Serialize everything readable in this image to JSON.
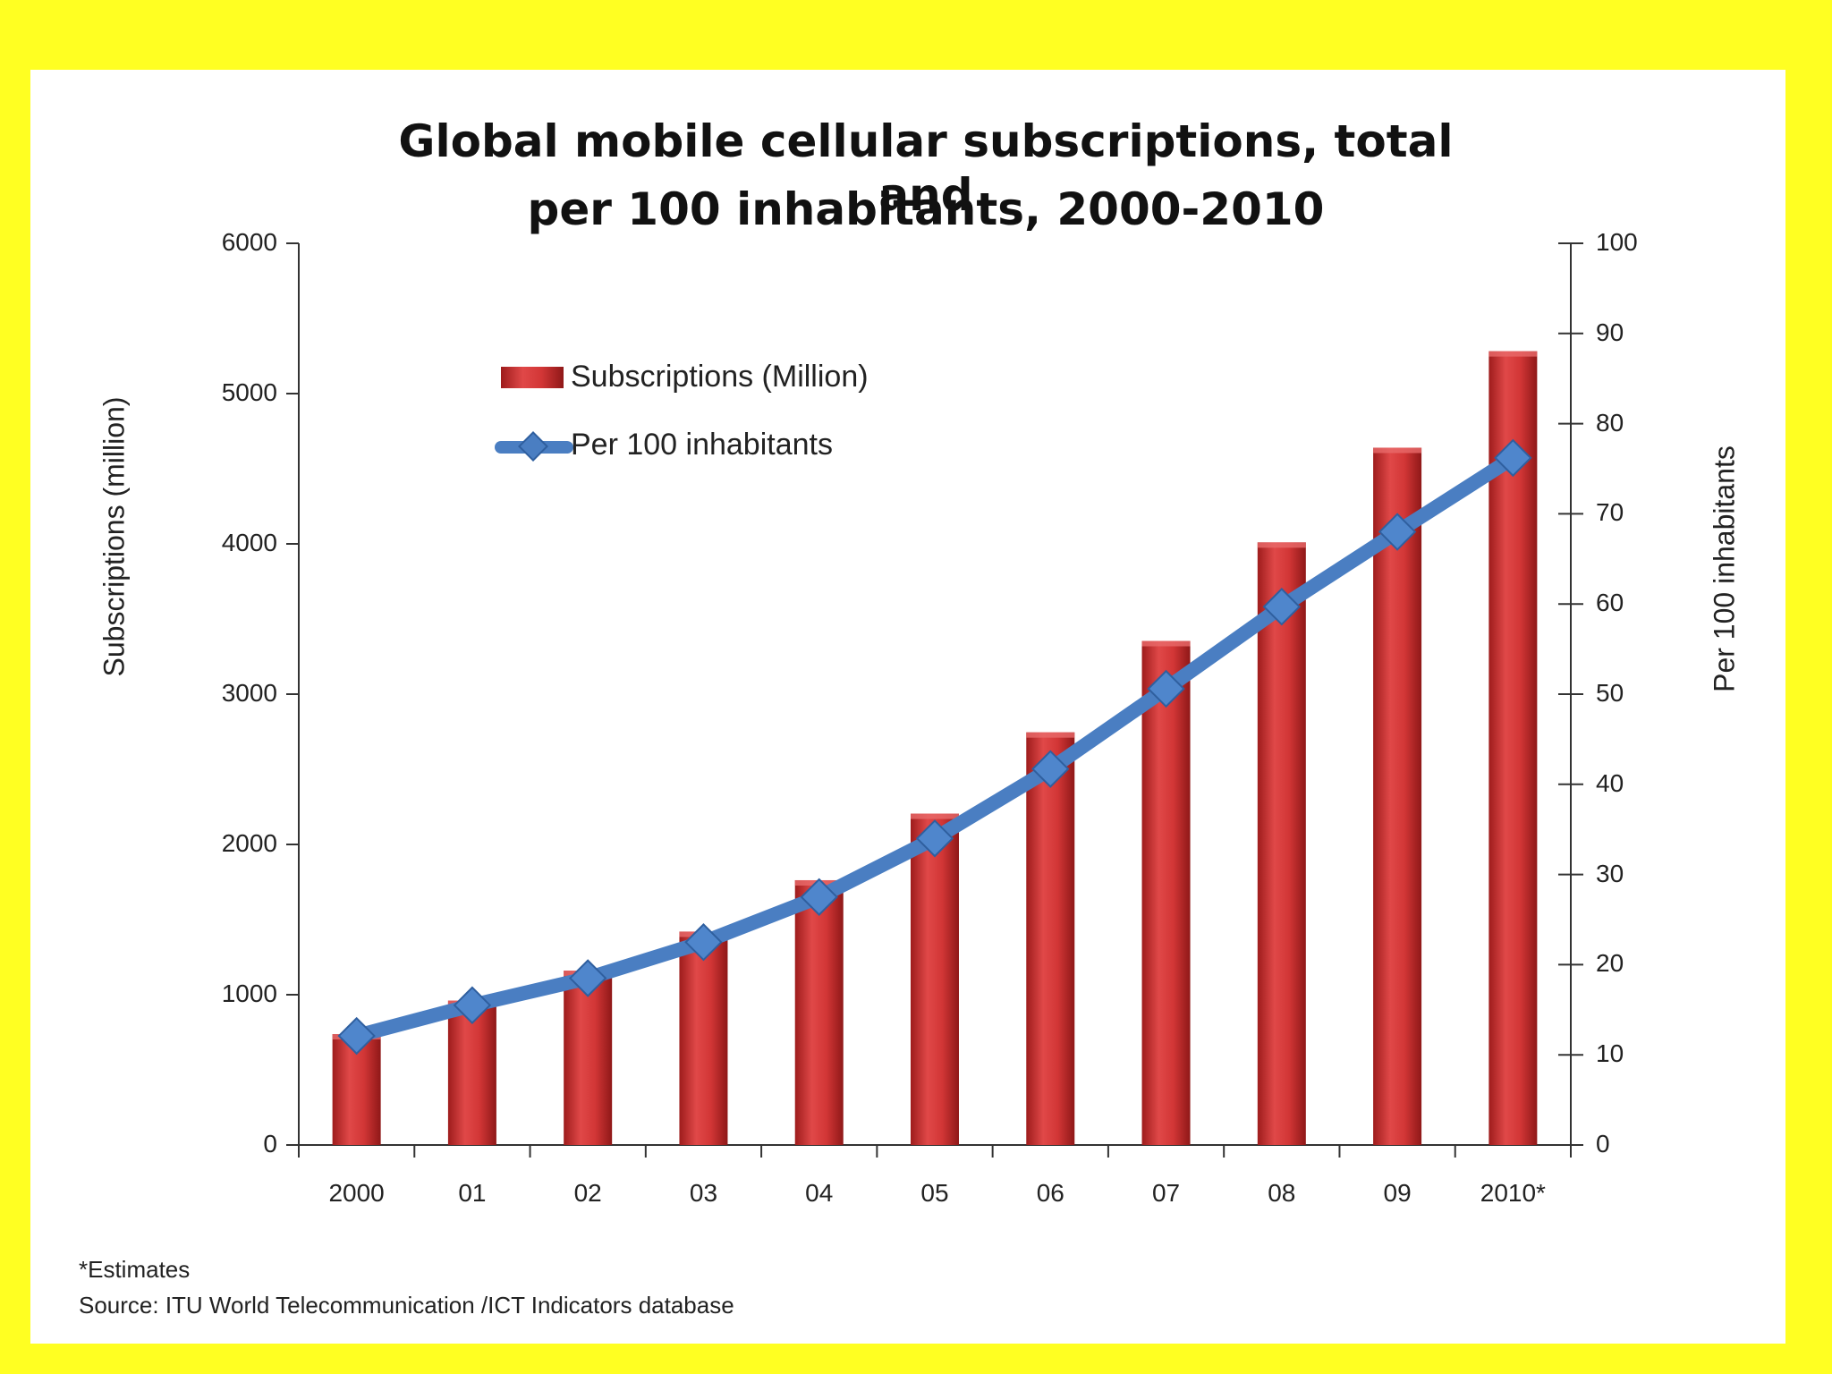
{
  "chart_data": {
    "type": "bar",
    "title_line1": "Global mobile cellular subscriptions, total and",
    "title_line2": "per 100 inhabitants, 2000-2010",
    "categories": [
      "2000",
      "01",
      "02",
      "03",
      "04",
      "05",
      "06",
      "07",
      "08",
      "09",
      "2010*"
    ],
    "series": [
      {
        "name": "Subscriptions (Million)",
        "type": "bar",
        "axis": "left",
        "color": "#cc2f2f",
        "values": [
          738,
          961,
          1160,
          1420,
          1762,
          2205,
          2746,
          3354,
          4010,
          4640,
          5282
        ]
      },
      {
        "name": "Per 100 inhabitants",
        "type": "line",
        "axis": "right",
        "color": "#4a7ec2",
        "values": [
          12.1,
          15.5,
          18.5,
          22.5,
          27.5,
          34.0,
          41.7,
          50.6,
          59.7,
          68.0,
          76.2
        ]
      }
    ],
    "y_left": {
      "label": "Subscriptions (million)",
      "range": [
        0,
        6000
      ],
      "ticks": [
        "0",
        "1000",
        "2000",
        "3000",
        "4000",
        "5000",
        "6000"
      ]
    },
    "y_right": {
      "label": "Per 100 inhabitants",
      "range": [
        0,
        100
      ],
      "ticks": [
        "0",
        "10",
        "20",
        "30",
        "40",
        "50",
        "60",
        "70",
        "80",
        "90",
        "100"
      ]
    },
    "legend_position": "top-left",
    "grid": false
  },
  "footnotes": {
    "estimates": "*Estimates",
    "source": "Source:  ITU World Telecommunication /ICT Indicators database"
  },
  "colors": {
    "background": "#ffff22",
    "panel": "#ffffff",
    "bar": "#cc2f2f",
    "line": "#4a7ec2"
  }
}
